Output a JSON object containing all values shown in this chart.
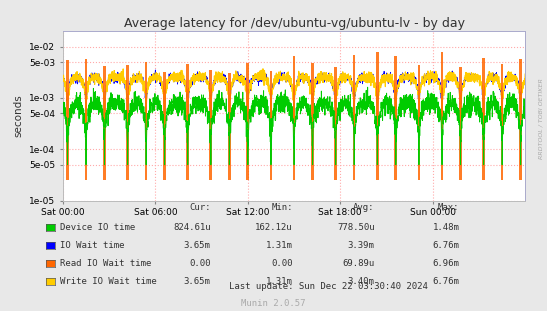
{
  "title": "Average latency for /dev/ubuntu-vg/ubuntu-lv - by day",
  "ylabel": "seconds",
  "xlabel_ticks": [
    "Sat 00:00",
    "Sat 06:00",
    "Sat 12:00",
    "Sat 18:00",
    "Sun 00:00"
  ],
  "bg_color": "#e8e8e8",
  "plot_bg_color": "#ffffff",
  "grid_color": "#ffaaaa",
  "watermark": "RRDTOOL / TOBI OETIKER",
  "munin_label": "Munin 2.0.57",
  "legend": [
    {
      "label": "Device IO time",
      "color": "#00cc00",
      "cur": "824.61u",
      "min": "162.12u",
      "avg": "778.50u",
      "max": "1.48m"
    },
    {
      "label": "IO Wait time",
      "color": "#0000ff",
      "cur": "3.65m",
      "min": "1.31m",
      "avg": "3.39m",
      "max": "6.76m"
    },
    {
      "label": "Read IO Wait time",
      "color": "#ff6600",
      "cur": "0.00",
      "min": "0.00",
      "avg": "69.89u",
      "max": "6.96m"
    },
    {
      "label": "Write IO Wait time",
      "color": "#ffcc00",
      "cur": "3.65m",
      "min": "1.31m",
      "avg": "3.40m",
      "max": "6.76m"
    }
  ],
  "last_update": "Last update: Sun Dec 22 03:30:40 2024",
  "yticks": [
    1e-05,
    5e-05,
    0.0001,
    0.0005,
    0.001,
    0.005,
    0.01
  ],
  "ytick_labels": [
    "1e-05",
    "5e-05",
    "1e-04",
    "5e-04",
    "1e-03",
    "5e-03",
    "1e-02"
  ]
}
